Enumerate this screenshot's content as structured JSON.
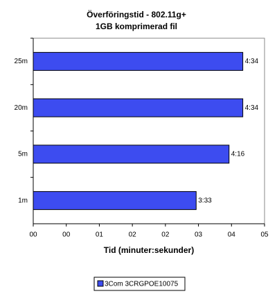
{
  "chart_data": {
    "type": "bar",
    "orientation": "horizontal",
    "title": [
      "Överföringstid - 802.11g+",
      "1GB komprimerad fil"
    ],
    "x_label": "Tid (minuter:sekunder)",
    "categories": [
      "25m",
      "20m",
      "5m",
      "1m"
    ],
    "series": [
      {
        "name": "3Com 3CRGPOE10075",
        "color": "#3d4cf0",
        "values": [
          274,
          274,
          256,
          213
        ],
        "value_labels": [
          "4:34",
          "4:34",
          "4:16",
          "3:33"
        ]
      }
    ],
    "xlim": [
      0,
      302.4
    ],
    "xticks": [
      {
        "value": 0,
        "label": "00"
      },
      {
        "value": 43.2,
        "label": "00"
      },
      {
        "value": 86.4,
        "label": "01"
      },
      {
        "value": 129.6,
        "label": "02"
      },
      {
        "value": 172.8,
        "label": "02"
      },
      {
        "value": 216,
        "label": "03"
      },
      {
        "value": 259.2,
        "label": "04"
      },
      {
        "value": 302.4,
        "label": "05"
      }
    ],
    "grid": false,
    "legend": "bottom"
  }
}
